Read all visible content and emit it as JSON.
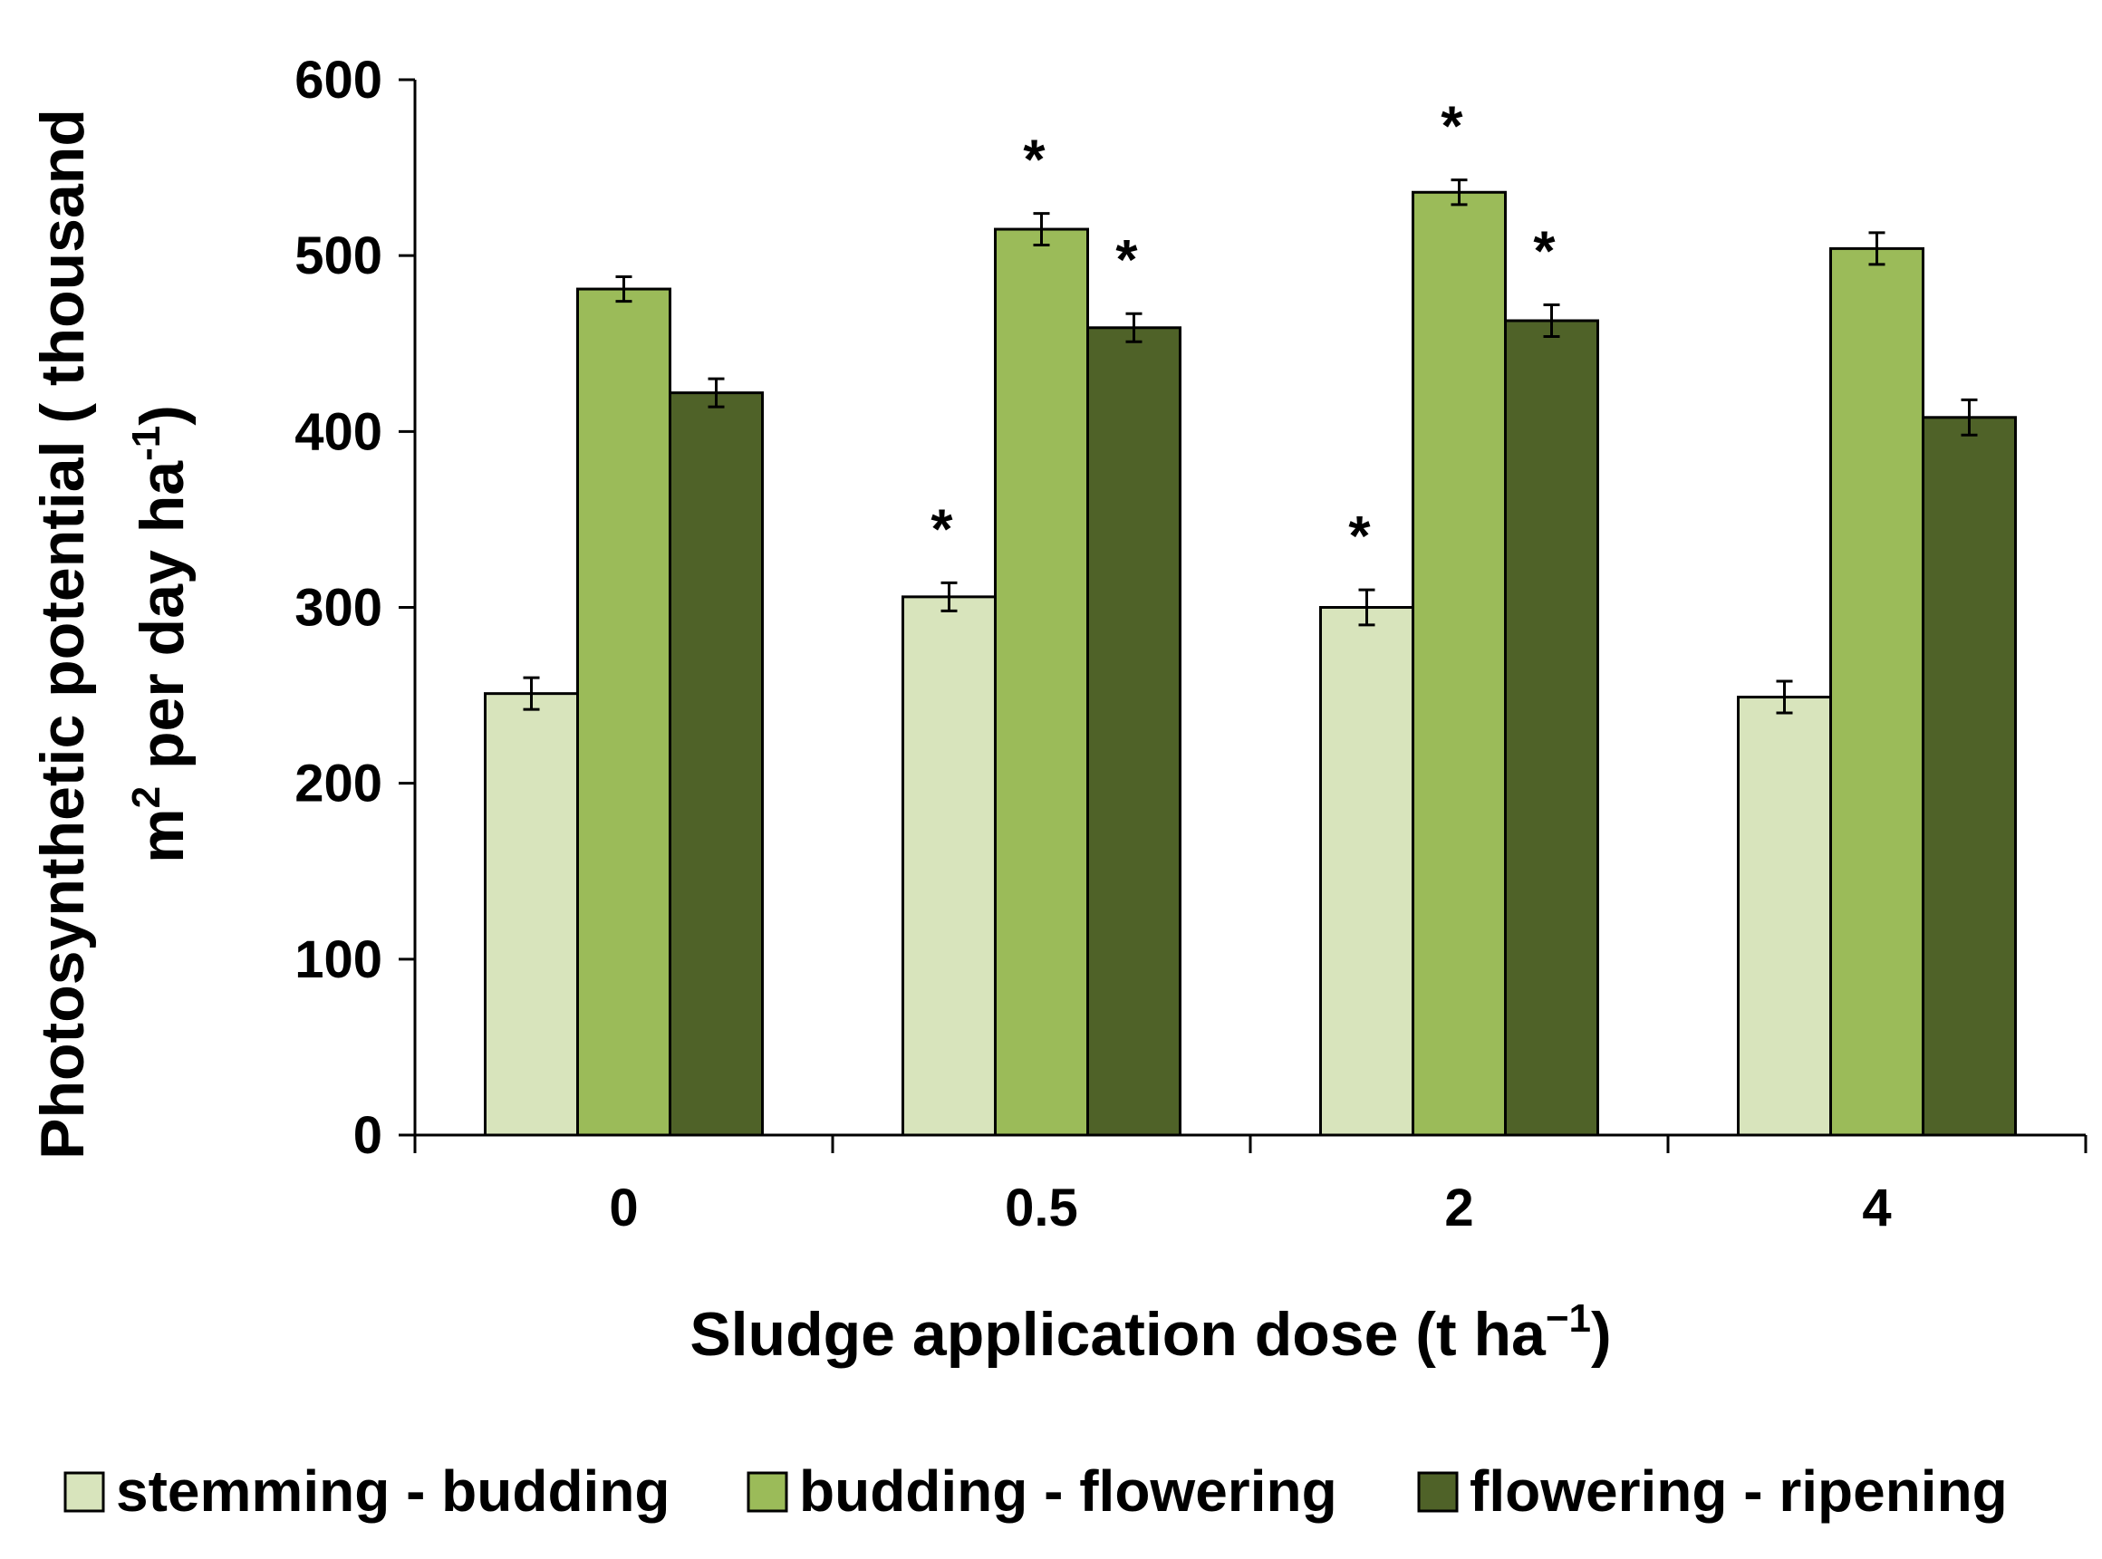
{
  "chart_data": {
    "type": "bar",
    "title": "",
    "xlabel": "Sludge application dose (t ha",
    "xlabel_sup": "−1",
    "xlabel_suffix": ")",
    "ylabel_line1": "Photosynthetic potential ( thousand",
    "ylabel_line2_pre": "m",
    "ylabel_line2_sup1": "2",
    "ylabel_line2_mid": " per day ha",
    "ylabel_line2_sup2": "-1",
    "ylabel_line2_post": ")",
    "categories": [
      "0",
      "0.5",
      "2",
      "4"
    ],
    "ylim": [
      0,
      600
    ],
    "yticks": [
      0,
      100,
      200,
      300,
      400,
      500,
      600
    ],
    "yticklabels": [
      "0",
      "100",
      "200",
      "300",
      "400",
      "500",
      "600"
    ],
    "series": [
      {
        "name": "stemming - budding",
        "color": "#d8e4bc",
        "values": [
          251,
          306,
          300,
          249
        ],
        "errors": [
          9,
          8,
          10,
          9
        ],
        "significant": [
          false,
          true,
          true,
          false
        ]
      },
      {
        "name": "budding - flowering",
        "color": "#9bbb59",
        "values": [
          481,
          515,
          536,
          504
        ],
        "errors": [
          7,
          9,
          7,
          9
        ],
        "significant": [
          false,
          true,
          true,
          false
        ]
      },
      {
        "name": "flowering - ripening",
        "color": "#4f6228",
        "values": [
          422,
          459,
          463,
          408
        ],
        "errors": [
          8,
          8,
          9,
          10
        ],
        "significant": [
          false,
          true,
          true,
          false
        ]
      }
    ],
    "significance_marker": "*",
    "legend_position": "bottom"
  }
}
